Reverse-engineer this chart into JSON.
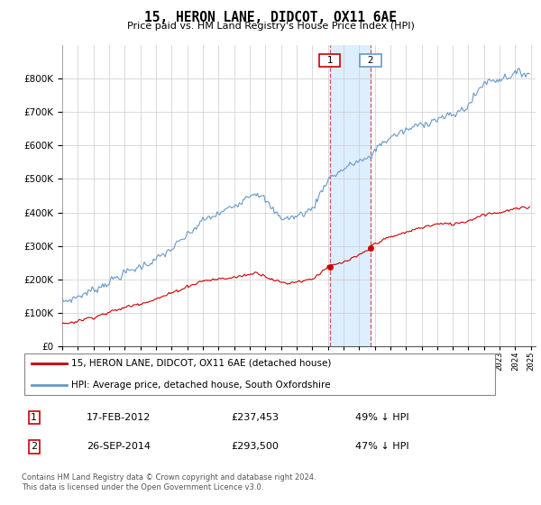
{
  "title": "15, HERON LANE, DIDCOT, OX11 6AE",
  "subtitle": "Price paid vs. HM Land Registry's House Price Index (HPI)",
  "legend_line1": "15, HERON LANE, DIDCOT, OX11 6AE (detached house)",
  "legend_line2": "HPI: Average price, detached house, South Oxfordshire",
  "transaction1_date": "17-FEB-2012",
  "transaction1_price": "£237,453",
  "transaction1_hpi": "49% ↓ HPI",
  "transaction2_date": "26-SEP-2014",
  "transaction2_price": "£293,500",
  "transaction2_hpi": "47% ↓ HPI",
  "footer": "Contains HM Land Registry data © Crown copyright and database right 2024.\nThis data is licensed under the Open Government Licence v3.0.",
  "hpi_color": "#6699cc",
  "price_color": "#cc0000",
  "shade_color": "#ddeeff",
  "background_color": "#ffffff",
  "grid_color": "#cccccc",
  "ylim": [
    0,
    900000
  ],
  "yticks": [
    0,
    100000,
    200000,
    300000,
    400000,
    500000,
    600000,
    700000,
    800000
  ],
  "xlim_start": 1995.0,
  "xlim_end": 2025.3,
  "t1_year": 2012.12,
  "t1_price": 237453,
  "t2_year": 2014.75,
  "t2_price": 293500
}
